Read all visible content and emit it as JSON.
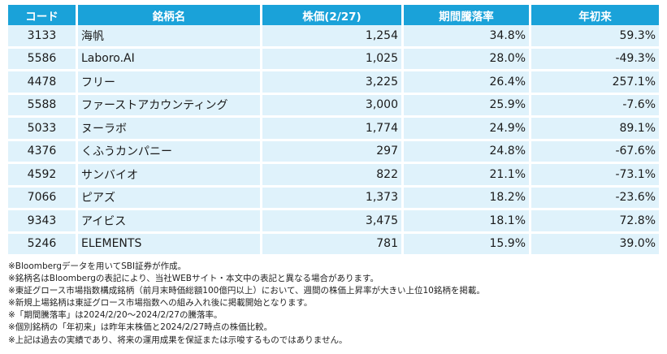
{
  "table": {
    "headers": {
      "code": "コード",
      "name": "銘柄名",
      "price": "株価(2/27)",
      "period_change": "期間騰落率",
      "ytd": "年初来"
    },
    "rows": [
      {
        "code": "3133",
        "name": "海帆",
        "price": "1,254",
        "period_change": "34.8%",
        "ytd": "59.3%"
      },
      {
        "code": "5586",
        "name": "Laboro.AI",
        "price": "1,025",
        "period_change": "28.0%",
        "ytd": "-49.3%"
      },
      {
        "code": "4478",
        "name": "フリー",
        "price": "3,225",
        "period_change": "26.4%",
        "ytd": "257.1%"
      },
      {
        "code": "5588",
        "name": "ファーストアカウンティング",
        "price": "3,000",
        "period_change": "25.9%",
        "ytd": "-7.6%"
      },
      {
        "code": "5033",
        "name": "ヌーラボ",
        "price": "1,774",
        "period_change": "24.9%",
        "ytd": "89.1%"
      },
      {
        "code": "4376",
        "name": "くふうカンパニー",
        "price": "297",
        "period_change": "24.8%",
        "ytd": "-67.6%"
      },
      {
        "code": "4592",
        "name": "サンバイオ",
        "price": "822",
        "period_change": "21.1%",
        "ytd": "-73.1%"
      },
      {
        "code": "7066",
        "name": "ピアズ",
        "price": "1,373",
        "period_change": "18.2%",
        "ytd": "-23.6%"
      },
      {
        "code": "9343",
        "name": "アイビス",
        "price": "3,475",
        "period_change": "18.1%",
        "ytd": "72.8%"
      },
      {
        "code": "5246",
        "name": "ELEMENTS",
        "price": "781",
        "period_change": "15.9%",
        "ytd": "39.0%"
      }
    ]
  },
  "notes": [
    "※Bloombergデータを用いてSBI証券が作成。",
    "※銘柄名はBloombergの表記により、当社WEBサイト・本文中の表記と異なる場合があります。",
    "※東証グロース市場指数構成銘柄（前月末時価総額100億円以上）において、週間の株価上昇率が大きい上位10銘柄を掲載。",
    "※新規上場銘柄は東証グロース市場指数への組み入れ後に掲載開始となります。",
    "※「期間騰落率」は2024/2/20～2024/2/27の騰落率。",
    "※個別銘柄の「年初来」は昨年末株価と2024/2/27時点の株価比較。",
    "※上記は過去の実績であり、将来の運用成果を保証または示唆するものではありません。"
  ],
  "colors": {
    "header_bg": "#1aa2d9",
    "row_bg": "#dff2fb"
  }
}
